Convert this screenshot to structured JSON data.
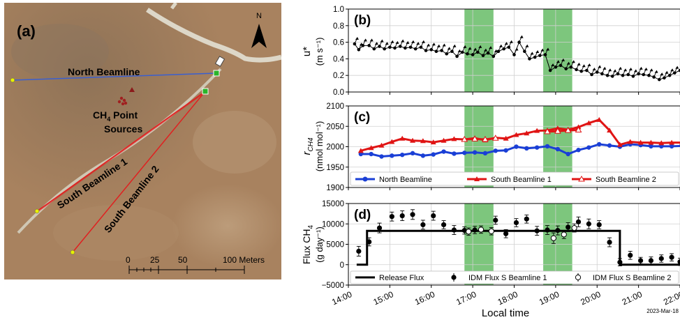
{
  "map": {
    "panel_label": "(a)",
    "north_label": "N",
    "north_beamline_label": "North Beamline",
    "south_beamline_1_label": "South Beamline 1",
    "south_beamline_2_label": "South Beamline 2",
    "sources_label_main": "CH",
    "sources_label_sub": "4",
    "sources_label_tail": " Point",
    "sources_label_line2": "Sources",
    "scale_ticks": [
      "0",
      "25",
      "50",
      "100 Meters"
    ],
    "colors": {
      "ground": "#a8825f",
      "north_line": "#3a5fd0",
      "south_line": "#e02020",
      "road": "#ddd7c8",
      "source": "#a02020"
    }
  },
  "xaxis": {
    "label": "Local time",
    "ticks": [
      "14:00",
      "15:00",
      "16:00",
      "17:00",
      "18:00",
      "19:00",
      "20:00",
      "21:00",
      "22:00"
    ],
    "date_note": "2023-Mar-18",
    "range": [
      14.0,
      22.0
    ]
  },
  "shaded_intervals": [
    [
      16.8,
      17.5
    ],
    [
      18.7,
      19.4
    ]
  ],
  "shade_color": "#5cb85c",
  "chart_data": [
    {
      "type": "line",
      "panel_label": "(b)",
      "ylabel_line1": "u*",
      "ylabel_line2": "(m s⁻¹)",
      "ylim": [
        0.0,
        1.0
      ],
      "yticks": [
        "0.0",
        "0.2",
        "0.4",
        "0.6",
        "0.8",
        "1.0"
      ],
      "ytick_values": [
        0.0,
        0.2,
        0.4,
        0.6,
        0.8,
        1.0
      ],
      "grid": true,
      "x": [
        14.15,
        14.25,
        14.35,
        14.5,
        14.62,
        14.75,
        14.87,
        15.0,
        15.12,
        15.25,
        15.37,
        15.5,
        15.62,
        15.75,
        15.87,
        16.0,
        16.12,
        16.25,
        16.37,
        16.5,
        16.62,
        16.75,
        16.87,
        17.0,
        17.12,
        17.25,
        17.37,
        17.5,
        17.62,
        17.75,
        17.87,
        18.0,
        18.12,
        18.25,
        18.37,
        18.5,
        18.62,
        18.75,
        18.87,
        19.0,
        19.12,
        19.25,
        19.37,
        19.5,
        19.62,
        19.75,
        19.87,
        20.0,
        20.12,
        20.25,
        20.37,
        20.5,
        20.62,
        20.75,
        20.87,
        21.0,
        21.12,
        21.25,
        21.37,
        21.5,
        21.62,
        21.75,
        21.87,
        22.0,
        22.1
      ],
      "values": [
        0.58,
        0.51,
        0.56,
        0.56,
        0.52,
        0.55,
        0.52,
        0.54,
        0.53,
        0.55,
        0.53,
        0.54,
        0.52,
        0.54,
        0.5,
        0.51,
        0.49,
        0.5,
        0.46,
        0.49,
        0.43,
        0.48,
        0.46,
        0.45,
        0.48,
        0.44,
        0.47,
        0.43,
        0.49,
        0.52,
        0.54,
        0.45,
        0.6,
        0.49,
        0.4,
        0.42,
        0.44,
        0.45,
        0.26,
        0.3,
        0.32,
        0.28,
        0.3,
        0.27,
        0.25,
        0.26,
        0.21,
        0.24,
        0.22,
        0.2,
        0.19,
        0.22,
        0.2,
        0.21,
        0.19,
        0.22,
        0.21,
        0.2,
        0.18,
        0.15,
        0.17,
        0.2,
        0.23,
        0.26,
        0.26
      ],
      "series_color": "#000000",
      "marker": "arrow"
    },
    {
      "type": "line",
      "panel_label": "(c)",
      "ylabel_main": "r",
      "ylabel_sub": "CH4",
      "ylabel_line2": "(nmol mol⁻¹)",
      "ylim": [
        1900,
        2100
      ],
      "yticks": [
        "1900",
        "1950",
        "2000",
        "2050",
        "2100"
      ],
      "ytick_values": [
        1900,
        1950,
        2000,
        2050,
        2100
      ],
      "grid": true,
      "x": [
        14.3,
        14.55,
        14.8,
        15.05,
        15.3,
        15.55,
        15.8,
        16.05,
        16.3,
        16.55,
        16.8,
        17.05,
        17.3,
        17.55,
        17.8,
        18.05,
        18.3,
        18.55,
        18.8,
        19.05,
        19.3,
        19.55,
        19.8,
        20.05,
        20.3,
        20.55,
        20.8,
        21.05,
        21.3,
        21.55,
        21.8,
        22.05
      ],
      "series": [
        {
          "name": "North Beamline",
          "color": "#1a3fd6",
          "marker": "circle",
          "values": [
            1982,
            1982,
            1976,
            1978,
            1980,
            1984,
            1978,
            1981,
            1988,
            1983,
            1985,
            1986,
            1984,
            1990,
            1991,
            2000,
            1996,
            1998,
            2001,
            1994,
            1982,
            1992,
            1998,
            2006,
            2003,
            2000,
            2006,
            2004,
            2001,
            2001,
            2001,
            2002
          ]
        },
        {
          "name": "South Beamline 1",
          "color": "#e01414",
          "marker": "triangle",
          "values": [
            1990,
            1997,
            2003,
            2012,
            2020,
            2015,
            2014,
            2011,
            2015,
            2019,
            2018,
            2021,
            2016,
            2022,
            2020,
            2029,
            2033,
            2039,
            2040,
            2045,
            2042,
            2048,
            2058,
            2066,
            2040,
            2005,
            2012,
            2010,
            2010,
            2009,
            2010,
            2010
          ]
        },
        {
          "name": "South Beamline 2",
          "color": "#e01414",
          "marker": "triangle-open",
          "values": [
            null,
            null,
            null,
            null,
            null,
            null,
            null,
            null,
            null,
            null,
            2018,
            2019,
            2018,
            2021,
            null,
            null,
            null,
            null,
            2037,
            2038,
            2040,
            2041,
            null,
            null,
            null,
            null,
            null,
            null,
            null,
            null,
            null,
            null
          ]
        }
      ],
      "legend": "bottom"
    },
    {
      "type": "scatter",
      "panel_label": "(d)",
      "ylabel_main": "Flux CH",
      "ylabel_sub": "4",
      "ylabel_line2": "(g day⁻¹)",
      "ylim": [
        -5000,
        15000
      ],
      "yticks": [
        "−5000",
        "0",
        "5000",
        "10000",
        "15000"
      ],
      "ytick_values": [
        -5000,
        0,
        5000,
        10000,
        15000
      ],
      "grid": true,
      "release_flux": {
        "name": "Release Flux",
        "x": [
          14.2,
          14.45,
          14.45,
          20.55,
          20.55,
          22.1
        ],
        "values": [
          0,
          0,
          8300,
          8300,
          0,
          0
        ]
      },
      "series": [
        {
          "name": "IDM Flux S Beamline 1",
          "marker": "circle-filled",
          "x": [
            14.25,
            14.5,
            14.75,
            15.05,
            15.3,
            15.55,
            15.8,
            16.05,
            16.3,
            16.55,
            16.8,
            17.05,
            17.55,
            17.8,
            18.05,
            18.3,
            18.55,
            18.8,
            19.05,
            19.3,
            19.55,
            19.8,
            20.05,
            20.3,
            20.55,
            20.8,
            21.05,
            21.3,
            21.55,
            21.8,
            22.0
          ],
          "values": [
            3300,
            5600,
            9000,
            11800,
            12000,
            12300,
            9800,
            12000,
            9800,
            8500,
            8400,
            8500,
            10900,
            7600,
            10300,
            11200,
            8300,
            8500,
            8400,
            9200,
            10500,
            10000,
            9800,
            5500,
            600,
            2300,
            1000,
            1000,
            1500,
            1800,
            700
          ],
          "errors": [
            1200,
            1000,
            1200,
            1100,
            1200,
            1200,
            1100,
            1100,
            1000,
            1100,
            900,
            900,
            1000,
            1000,
            1000,
            1000,
            1100,
            1100,
            1100,
            1100,
            1200,
            1200,
            1000,
            1100,
            900,
            1000,
            800,
            900,
            900,
            900,
            900
          ]
        },
        {
          "name": "IDM Flux S Beamline 2",
          "marker": "circle-open",
          "x": [
            16.9,
            17.2,
            17.45,
            18.95,
            19.2,
            19.45
          ],
          "values": [
            8100,
            8600,
            8200,
            6500,
            7400,
            9000
          ],
          "errors": [
            900,
            900,
            900,
            1300,
            1000,
            1000
          ]
        }
      ],
      "legend": "bottom"
    }
  ]
}
